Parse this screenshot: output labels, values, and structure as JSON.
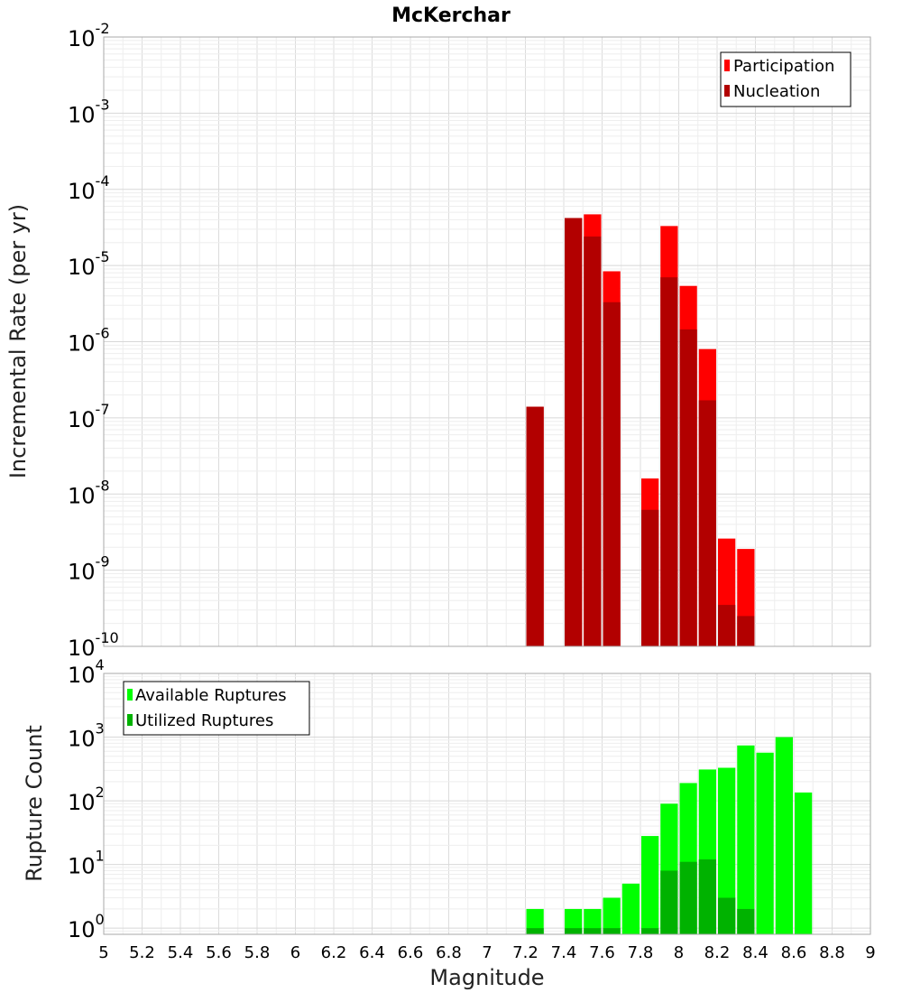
{
  "chart_data": [
    {
      "type": "bar",
      "name": "rate-panel",
      "title": "McKerchar",
      "ylabel": "Incremental Rate (per yr)",
      "yscale": "log",
      "ylim": [
        1e-10,
        0.01
      ],
      "xlim": [
        5,
        9
      ],
      "legend_position": "top-right",
      "bin_width": 0.1,
      "x": [
        7.25,
        7.45,
        7.55,
        7.65,
        7.85,
        7.95,
        8.05,
        8.15,
        8.25,
        8.35
      ],
      "series": [
        {
          "name": "Participation",
          "color": "#ff0000",
          "values": [
            1.4e-07,
            4.2e-05,
            4.7e-05,
            8.4e-06,
            1.6e-08,
            3.3e-05,
            5.4e-06,
            8e-07,
            2.6e-09,
            1.9e-09
          ]
        },
        {
          "name": "Nucleation",
          "color": "#b20000",
          "values": [
            1.4e-07,
            4.2e-05,
            2.4e-05,
            3.3e-06,
            6.2e-09,
            7e-06,
            1.45e-06,
            1.7e-07,
            3.5e-10,
            2.5e-10
          ]
        }
      ]
    },
    {
      "type": "bar",
      "name": "count-panel",
      "ylabel": "Rupture Count",
      "xlabel": "Magnitude",
      "yscale": "log",
      "ylim": [
        0.8,
        10000
      ],
      "xlim": [
        5,
        9
      ],
      "legend_position": "top-left",
      "bin_width": 0.1,
      "x": [
        7.25,
        7.45,
        7.55,
        7.65,
        7.75,
        7.85,
        7.95,
        8.05,
        8.15,
        8.25,
        8.35,
        8.45,
        8.55,
        8.65
      ],
      "series": [
        {
          "name": "Available Ruptures",
          "color": "#00ff00",
          "values": [
            2,
            2,
            2,
            3,
            5,
            28,
            90,
            190,
            310,
            330,
            740,
            570,
            1000,
            135
          ]
        },
        {
          "name": "Utilized Ruptures",
          "color": "#00b200",
          "values": [
            1,
            1,
            1,
            1,
            0,
            1,
            8,
            11,
            12,
            3,
            2,
            0,
            0,
            0
          ]
        }
      ]
    }
  ],
  "x_ticks": [
    "5",
    "5.2",
    "5.4",
    "5.6",
    "5.8",
    "6",
    "6.2",
    "6.4",
    "6.6",
    "6.8",
    "7",
    "7.2",
    "7.4",
    "7.6",
    "7.8",
    "8",
    "8.2",
    "8.4",
    "8.6",
    "8.8",
    "9"
  ],
  "rate_y_ticks": [
    {
      "base": "10",
      "exp": "-10"
    },
    {
      "base": "10",
      "exp": "-9"
    },
    {
      "base": "10",
      "exp": "-8"
    },
    {
      "base": "10",
      "exp": "-7"
    },
    {
      "base": "10",
      "exp": "-6"
    },
    {
      "base": "10",
      "exp": "-5"
    },
    {
      "base": "10",
      "exp": "-4"
    },
    {
      "base": "10",
      "exp": "-3"
    },
    {
      "base": "10",
      "exp": "-2"
    }
  ],
  "count_y_ticks": [
    {
      "base": "10",
      "exp": "0"
    },
    {
      "base": "10",
      "exp": "1"
    },
    {
      "base": "10",
      "exp": "2"
    },
    {
      "base": "10",
      "exp": "3"
    },
    {
      "base": "10",
      "exp": "4"
    }
  ]
}
